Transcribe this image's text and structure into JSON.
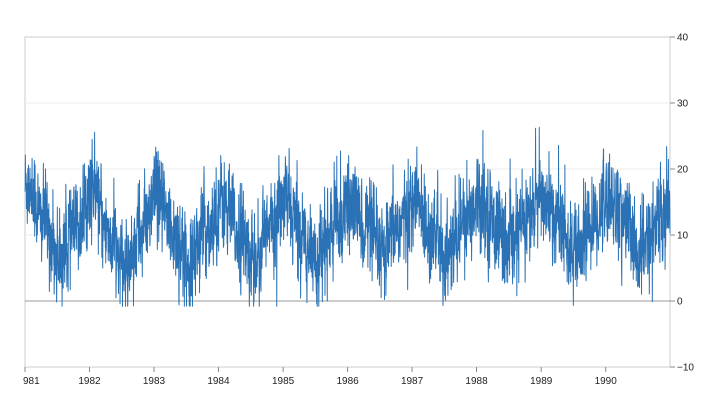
{
  "chart_data": {
    "type": "line",
    "title": "",
    "xlabel": "",
    "ylabel": "",
    "x_start": "1981-01-01",
    "x_end": "1990-12-31",
    "xlim": [
      "1981-01-01",
      "1990-12-31"
    ],
    "ylim": [
      -10,
      40
    ],
    "x_tick_labels": [
      "981",
      "1982",
      "1983",
      "1984",
      "1985",
      "1986",
      "1987",
      "1988",
      "1989",
      "1990"
    ],
    "x_tick_values": [
      "1981-01-01",
      "1982-01-01",
      "1983-01-01",
      "1984-01-01",
      "1985-01-01",
      "1986-01-01",
      "1987-01-01",
      "1988-01-01",
      "1989-01-01",
      "1990-01-01"
    ],
    "y_ticks": [
      -10,
      0,
      10,
      20,
      30,
      40
    ],
    "y_tick_labels": [
      "−10",
      "0",
      "10",
      "20",
      "30",
      "40"
    ],
    "y_axis_position": "right",
    "grid": true,
    "legend": "none",
    "series": [
      {
        "color": "#2a72b5",
        "approx_stats": {
          "mean": 11.2,
          "seasonal_amplitude": 4.2,
          "daily_noise_sd": 3.5,
          "min": -0.8,
          "max": 26.3
        },
        "monthly_mean": [
          {
            "x": "1981-01",
            "y": 17.6
          },
          {
            "x": "1981-04",
            "y": 12.2
          },
          {
            "x": "1981-07",
            "y": 6.4
          },
          {
            "x": "1981-10",
            "y": 10.8
          },
          {
            "x": "1982-01",
            "y": 16.9
          },
          {
            "x": "1982-04",
            "y": 10.5
          },
          {
            "x": "1982-07",
            "y": 4.8
          },
          {
            "x": "1982-10",
            "y": 10.2
          },
          {
            "x": "1983-01",
            "y": 15.4
          },
          {
            "x": "1983-04",
            "y": 10.9
          },
          {
            "x": "1983-07",
            "y": 6.2
          },
          {
            "x": "1983-10",
            "y": 10.6
          },
          {
            "x": "1984-01",
            "y": 15.2
          },
          {
            "x": "1984-04",
            "y": 10.8
          },
          {
            "x": "1984-07",
            "y": 6.6
          },
          {
            "x": "1984-10",
            "y": 10.6
          },
          {
            "x": "1985-01",
            "y": 15.0
          },
          {
            "x": "1985-04",
            "y": 10.2
          },
          {
            "x": "1985-07",
            "y": 6.5
          },
          {
            "x": "1985-10",
            "y": 11.0
          },
          {
            "x": "1986-01",
            "y": 14.4
          },
          {
            "x": "1986-04",
            "y": 11.5
          },
          {
            "x": "1986-07",
            "y": 6.4
          },
          {
            "x": "1986-10",
            "y": 11.4
          },
          {
            "x": "1987-01",
            "y": 14.9
          },
          {
            "x": "1987-04",
            "y": 11.2
          },
          {
            "x": "1987-07",
            "y": 6.8
          },
          {
            "x": "1987-10",
            "y": 11.2
          },
          {
            "x": "1988-01",
            "y": 15.9
          },
          {
            "x": "1988-04",
            "y": 11.8
          },
          {
            "x": "1988-07",
            "y": 8.0
          },
          {
            "x": "1988-10",
            "y": 12.8
          },
          {
            "x": "1989-01",
            "y": 15.4
          },
          {
            "x": "1989-04",
            "y": 12.0
          },
          {
            "x": "1989-07",
            "y": 6.3
          },
          {
            "x": "1989-10",
            "y": 11.3
          },
          {
            "x": "1990-01",
            "y": 15.4
          },
          {
            "x": "1990-04",
            "y": 12.6
          },
          {
            "x": "1990-07",
            "y": 6.8
          },
          {
            "x": "1990-10",
            "y": 11.6
          },
          {
            "x": "1990-12",
            "y": 13.8
          }
        ]
      }
    ]
  }
}
